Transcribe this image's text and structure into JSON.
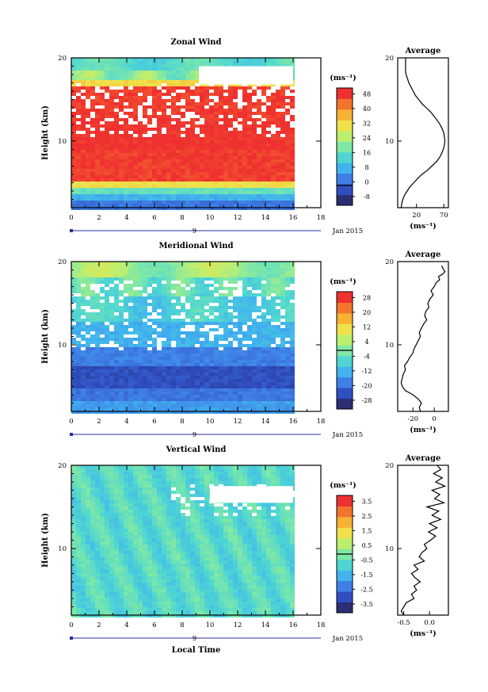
{
  "chart_data": [
    {
      "type": "heatmap",
      "id": "zonal",
      "title": "Zonal Wind",
      "ylabel": "Height (km)",
      "xlim": [
        0,
        18
      ],
      "ylim": [
        2,
        20
      ],
      "xticks": [
        "0",
        "2",
        "4",
        "6",
        "8",
        "10",
        "12",
        "14",
        "16",
        "18"
      ],
      "yticks": [
        "10",
        "20"
      ],
      "date_row": {
        "label": "9",
        "suffix": "Jan 2015"
      },
      "data_end_hour": 16,
      "colorbar": {
        "unit_label": "(ms⁻¹)",
        "ticks": [
          "-8",
          "0",
          "8",
          "16",
          "24",
          "32",
          "40",
          "48"
        ],
        "line_at": "0"
      },
      "profile_mean": [
        [
          0,
          20
        ],
        [
          0,
          18.5
        ],
        [
          1,
          18.0
        ],
        [
          3,
          17.6
        ],
        [
          6,
          17.0
        ],
        [
          10,
          16.5
        ],
        [
          14,
          16.0
        ],
        [
          18,
          15.5
        ],
        [
          24,
          15.0
        ],
        [
          30,
          14.5
        ],
        [
          38,
          14.0
        ],
        [
          46,
          13.5
        ],
        [
          52,
          13.0
        ],
        [
          58,
          12.5
        ],
        [
          63,
          12.0
        ],
        [
          67,
          11.5
        ],
        [
          70,
          11.0
        ],
        [
          71,
          10.5
        ],
        [
          72,
          10.0
        ],
        [
          71,
          9.5
        ],
        [
          69,
          9.0
        ],
        [
          66,
          8.5
        ],
        [
          62,
          8.0
        ],
        [
          56,
          7.5
        ],
        [
          48,
          7.0
        ],
        [
          40,
          6.5
        ],
        [
          30,
          6.0
        ],
        [
          22,
          5.5
        ],
        [
          15,
          5.0
        ],
        [
          8,
          4.5
        ],
        [
          3,
          4.0
        ],
        [
          -2,
          3.5
        ],
        [
          -5,
          3.0
        ],
        [
          -7,
          2.5
        ],
        [
          -8,
          2.0
        ]
      ],
      "avg_title": "Average",
      "avg_xticks": [
        "20",
        "70"
      ],
      "avg_yticks": [
        "10",
        "20"
      ],
      "avg_xlabel": "(ms⁻¹)"
    },
    {
      "type": "heatmap",
      "id": "meridional",
      "title": "Meridional Wind",
      "ylabel": "Height (km)",
      "xlim": [
        0,
        18
      ],
      "ylim": [
        2,
        20
      ],
      "xticks": [
        "0",
        "2",
        "4",
        "6",
        "8",
        "10",
        "12",
        "14",
        "16",
        "18"
      ],
      "yticks": [
        "10",
        "20"
      ],
      "date_row": {
        "label": "9",
        "suffix": "Jan 2015"
      },
      "data_end_hour": 16,
      "colorbar": {
        "unit_label": "(ms⁻¹)",
        "ticks": [
          "-28",
          "-20",
          "-12",
          "-4",
          "4",
          "12",
          "20",
          "28"
        ],
        "line_at": "0"
      },
      "profile_mean": [
        [
          7,
          19.5
        ],
        [
          9,
          19.0
        ],
        [
          10,
          18.8
        ],
        [
          8,
          18.5
        ],
        [
          4,
          18.2
        ],
        [
          5,
          17.8
        ],
        [
          2,
          17.5
        ],
        [
          0,
          17.0
        ],
        [
          -3,
          16.5
        ],
        [
          -1,
          16.0
        ],
        [
          -4,
          15.5
        ],
        [
          -6,
          15.0
        ],
        [
          -5,
          14.5
        ],
        [
          -8,
          14.0
        ],
        [
          -9,
          13.5
        ],
        [
          -7,
          13.0
        ],
        [
          -10,
          12.5
        ],
        [
          -12,
          12.0
        ],
        [
          -14,
          11.5
        ],
        [
          -13,
          11.0
        ],
        [
          -15,
          10.5
        ],
        [
          -17,
          10.0
        ],
        [
          -19,
          9.5
        ],
        [
          -20,
          9.0
        ],
        [
          -23,
          8.5
        ],
        [
          -25,
          8.0
        ],
        [
          -28,
          7.5
        ],
        [
          -27,
          7.0
        ],
        [
          -29,
          6.5
        ],
        [
          -30,
          6.0
        ],
        [
          -31,
          5.5
        ],
        [
          -30,
          5.0
        ],
        [
          -27,
          4.5
        ],
        [
          -20,
          4.0
        ],
        [
          -15,
          3.5
        ],
        [
          -12,
          3.0
        ],
        [
          -14,
          2.5
        ],
        [
          -13,
          2.0
        ]
      ],
      "avg_title": "Average",
      "avg_xticks": [
        "-20",
        "0"
      ],
      "avg_yticks": [
        "10",
        "20"
      ],
      "avg_xlabel": "(ms⁻¹)"
    },
    {
      "type": "heatmap",
      "id": "vertical",
      "title": "Vertical Wind",
      "ylabel": "Height (km)",
      "xlabel": "Local Time",
      "xlim": [
        0,
        18
      ],
      "ylim": [
        2,
        20
      ],
      "xticks": [
        "0",
        "2",
        "4",
        "6",
        "8",
        "10",
        "12",
        "14",
        "16",
        "18"
      ],
      "yticks": [
        "10",
        "20"
      ],
      "date_row": {
        "label": "9",
        "suffix": "Jan 2015"
      },
      "data_end_hour": 16,
      "colorbar": {
        "unit_label": "(ms⁻¹)",
        "ticks": [
          "-3.5",
          "-2.5",
          "-1.5",
          "-0.5",
          "0.5",
          "1.5",
          "2.5",
          "3.5"
        ],
        "line_at": "0"
      },
      "profile_mean": [
        [
          0.15,
          20.0
        ],
        [
          0.22,
          19.5
        ],
        [
          0.08,
          19.0
        ],
        [
          0.25,
          18.5
        ],
        [
          0.12,
          18.0
        ],
        [
          0.3,
          17.5
        ],
        [
          0.05,
          17.0
        ],
        [
          0.2,
          16.5
        ],
        [
          0.1,
          16.0
        ],
        [
          0.28,
          15.5
        ],
        [
          -0.05,
          15.0
        ],
        [
          0.18,
          14.5
        ],
        [
          0.05,
          14.0
        ],
        [
          0.22,
          13.5
        ],
        [
          0.0,
          13.0
        ],
        [
          0.15,
          12.5
        ],
        [
          -0.02,
          12.0
        ],
        [
          0.12,
          11.5
        ],
        [
          0.02,
          11.0
        ],
        [
          -0.1,
          10.5
        ],
        [
          -0.05,
          10.0
        ],
        [
          -0.15,
          9.5
        ],
        [
          -0.2,
          9.0
        ],
        [
          -0.1,
          8.5
        ],
        [
          -0.3,
          8.0
        ],
        [
          -0.22,
          7.5
        ],
        [
          -0.35,
          7.0
        ],
        [
          -0.28,
          6.5
        ],
        [
          -0.18,
          6.0
        ],
        [
          -0.3,
          5.5
        ],
        [
          -0.25,
          5.0
        ],
        [
          -0.35,
          4.5
        ],
        [
          -0.3,
          4.0
        ],
        [
          -0.45,
          3.5
        ],
        [
          -0.5,
          3.0
        ],
        [
          -0.55,
          2.5
        ],
        [
          -0.5,
          2.0
        ]
      ],
      "avg_title": "Average",
      "avg_xticks": [
        "-0.5",
        "0.0"
      ],
      "avg_yticks": [
        "10",
        "20"
      ],
      "avg_xlabel": "(ms⁻¹)"
    }
  ]
}
